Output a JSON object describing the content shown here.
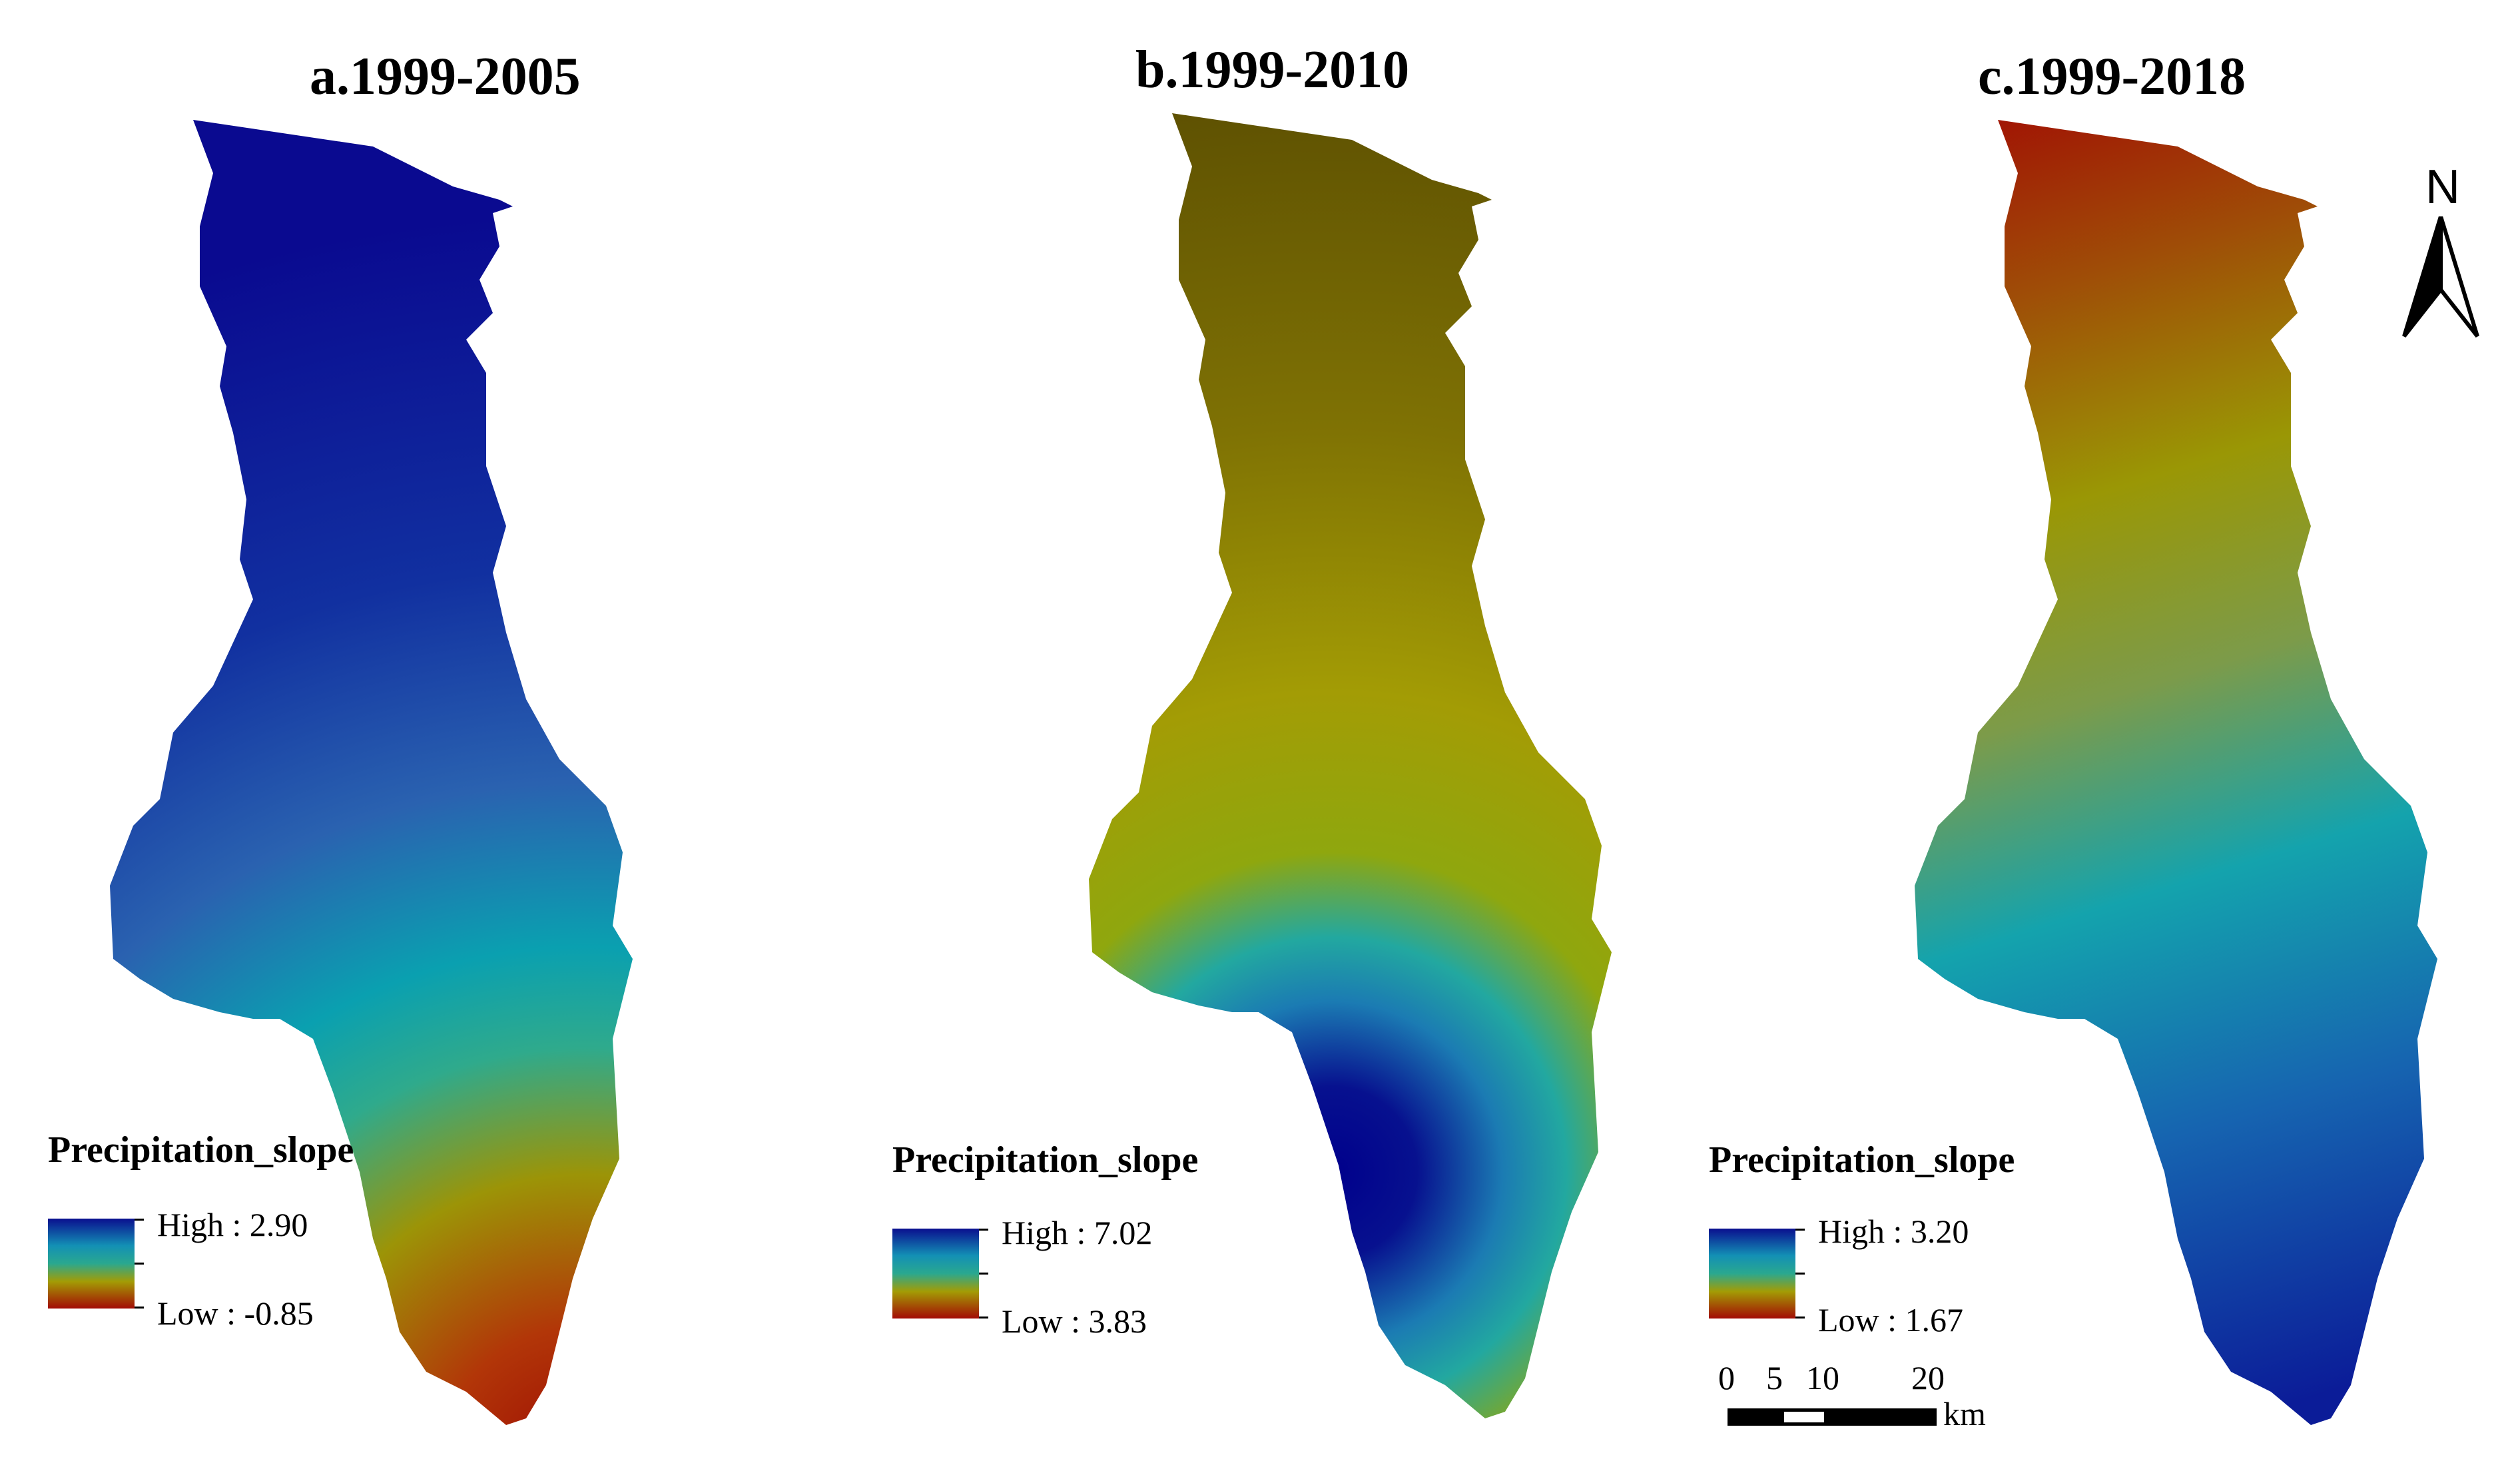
{
  "panels": [
    {
      "title": "a.1999-2005",
      "legend": {
        "title": "Precipitation_slope",
        "high": "High : 2.90",
        "low": "Low : -0.85"
      }
    },
    {
      "title": "b.1999-2010",
      "legend": {
        "title": "Precipitation_slope",
        "high": "High : 7.02",
        "low": "Low : 3.83"
      }
    },
    {
      "title": "c.1999-2018",
      "legend": {
        "title": "Precipitation_slope",
        "high": "High : 3.20",
        "low": "Low : 1.67"
      }
    }
  ],
  "north_arrow": {
    "label": "N"
  },
  "scale_bar": {
    "ticks": [
      "0",
      "5",
      "10",
      "20"
    ],
    "unit": "km"
  },
  "colors": {
    "high": "#0a0f8f",
    "mid_high": "#0fa0a8",
    "mid": "#9a9a05",
    "low": "#a30b05",
    "olive": "#6b5c02"
  }
}
